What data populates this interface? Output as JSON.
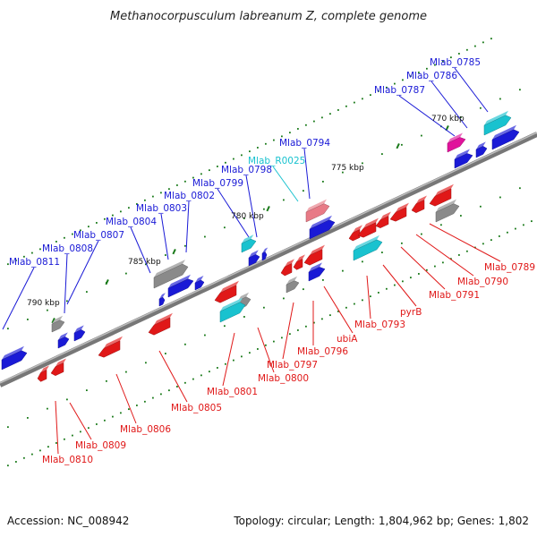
{
  "title": "Methanocorpusculum labreanum Z, complete genome",
  "footer": {
    "accession": "Accession: NC_008942",
    "summary": "Topology: circular; Length: 1,804,962 bp; Genes: 1,802"
  },
  "colors": {
    "forward_strand": "#1a1ad6",
    "reverse_strand": "#e01818",
    "rna": "#19c2cf",
    "pseudogene": "#8a8a8a",
    "highlight": "#e0139b",
    "backbone": "#777777",
    "tick_marks": "#1a7a1a"
  },
  "ticks": [
    "790 kbp",
    "785 kbp",
    "780 kbp",
    "775 kbp",
    "770 kbp"
  ],
  "top_labels": [
    {
      "text": "Mlab_0785",
      "color": "#1a1ad6"
    },
    {
      "text": "Mlab_0786",
      "color": "#1a1ad6"
    },
    {
      "text": "Mlab_0787",
      "color": "#1a1ad6"
    },
    {
      "text": "Mlab_0794",
      "color": "#1a1ad6"
    },
    {
      "text": "Mlab_R0025",
      "color": "#19c2cf"
    },
    {
      "text": "Mlab_0798",
      "color": "#1a1ad6"
    },
    {
      "text": "Mlab_0799",
      "color": "#1a1ad6"
    },
    {
      "text": "Mlab_0802",
      "color": "#1a1ad6"
    },
    {
      "text": "Mlab_0803",
      "color": "#1a1ad6"
    },
    {
      "text": "Mlab_0804",
      "color": "#1a1ad6"
    },
    {
      "text": "Mlab_0807",
      "color": "#1a1ad6"
    },
    {
      "text": "Mlab_0808",
      "color": "#1a1ad6"
    },
    {
      "text": "Mlab_0811",
      "color": "#1a1ad6"
    }
  ],
  "bottom_labels": [
    {
      "text": "Mlab_0789"
    },
    {
      "text": "Mlab_0790"
    },
    {
      "text": "Mlab_0791"
    },
    {
      "text": "pyrB"
    },
    {
      "text": "Mlab_0793"
    },
    {
      "text": "ubiA"
    },
    {
      "text": "Mlab_0796"
    },
    {
      "text": "Mlab_0797"
    },
    {
      "text": "Mlab_0800"
    },
    {
      "text": "Mlab_0801"
    },
    {
      "text": "Mlab_0805"
    },
    {
      "text": "Mlab_0806"
    },
    {
      "text": "Mlab_0809"
    },
    {
      "text": "Mlab_0810"
    }
  ]
}
